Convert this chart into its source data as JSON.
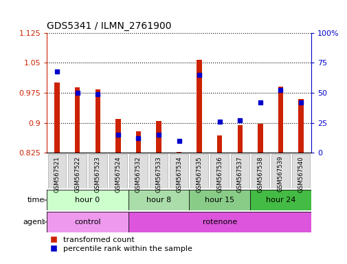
{
  "title": "GDS5341 / ILMN_2761900",
  "samples": [
    "GSM567521",
    "GSM567522",
    "GSM567523",
    "GSM567524",
    "GSM567532",
    "GSM567533",
    "GSM567534",
    "GSM567535",
    "GSM567536",
    "GSM567537",
    "GSM567538",
    "GSM567539",
    "GSM567540"
  ],
  "transformed_count": [
    1.0,
    0.988,
    0.983,
    0.91,
    0.878,
    0.905,
    0.828,
    1.058,
    0.868,
    0.895,
    0.897,
    0.99,
    0.96
  ],
  "percentile_rank": [
    68,
    50,
    49,
    15,
    12,
    15,
    10,
    65,
    26,
    27,
    42,
    52,
    42
  ],
  "ylim_left": [
    0.825,
    1.125
  ],
  "ylim_right": [
    0,
    100
  ],
  "yticks_left": [
    0.825,
    0.9,
    0.975,
    1.05,
    1.125
  ],
  "yticks_right": [
    0,
    25,
    50,
    75,
    100
  ],
  "bar_baseline": 0.825,
  "red_color": "#cc2200",
  "blue_color": "#0000cc",
  "time_groups": [
    {
      "label": "hour 0",
      "start": 0,
      "end": 4,
      "color": "#ccffcc"
    },
    {
      "label": "hour 8",
      "start": 4,
      "end": 7,
      "color": "#aaddaa"
    },
    {
      "label": "hour 15",
      "start": 7,
      "end": 10,
      "color": "#88cc88"
    },
    {
      "label": "hour 24",
      "start": 10,
      "end": 13,
      "color": "#44bb44"
    }
  ],
  "agent_groups": [
    {
      "label": "control",
      "start": 0,
      "end": 4,
      "color": "#ee99ee"
    },
    {
      "label": "rotenone",
      "start": 4,
      "end": 13,
      "color": "#dd55dd"
    }
  ],
  "legend_red_label": "transformed count",
  "legend_blue_label": "percentile rank within the sample",
  "time_label": "time",
  "agent_label": "agent",
  "xlabel_box_color": "#dddddd",
  "xlabel_box_edge": "#aaaaaa"
}
